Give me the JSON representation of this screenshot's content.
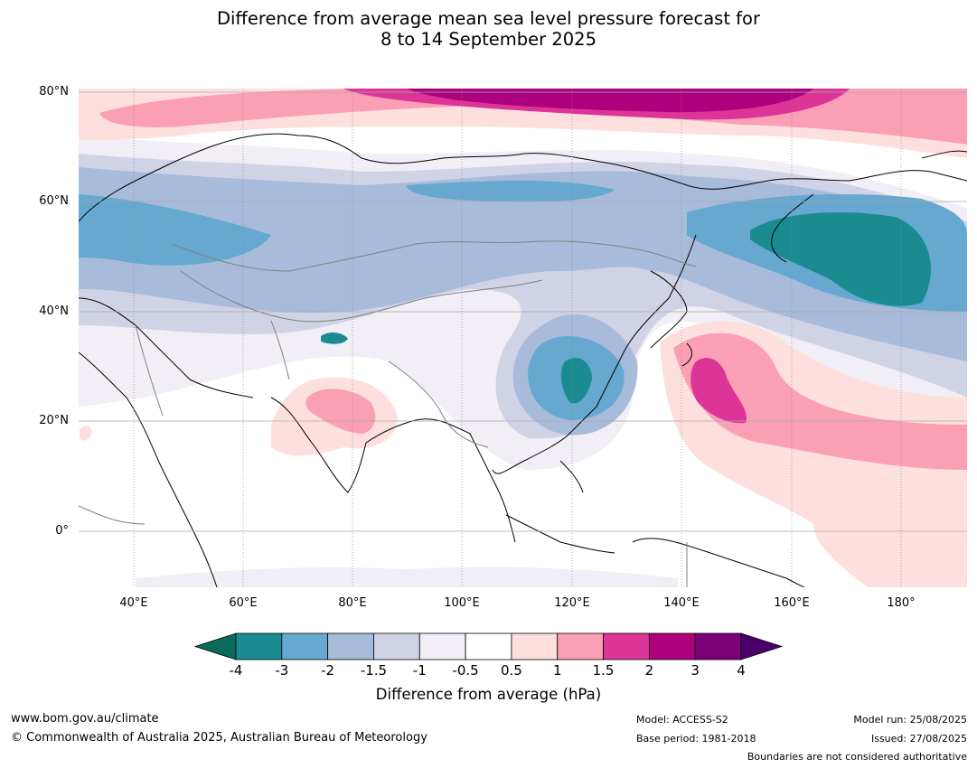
{
  "title_line1": "Difference from average mean sea level pressure forecast for",
  "title_line2": "8 to 14 September 2025",
  "map": {
    "lat_labels": [
      "80°N",
      "60°N",
      "40°N",
      "20°N",
      "0°"
    ],
    "lon_labels": [
      "40°E",
      "60°E",
      "80°E",
      "100°E",
      "120°E",
      "140°E",
      "160°E",
      "180°"
    ],
    "lon_range_deg": [
      30,
      190
    ],
    "lat_range_deg": [
      -10,
      80
    ],
    "anomaly_colors": {
      "below_-4": "#0b6b5a",
      "-4_to_-3": "#1a8c91",
      "-3_to_-2": "#66a8cf",
      "-2_to_-1.5": "#a8bbda",
      "-1.5_to_-1": "#d0d2e6",
      "-1_to_-0.5": "#f2eef5",
      "-0.5_to_0.5": "#ffffff",
      "0.5_to_1": "#fde0dd",
      "1_to_1.5": "#fa9fb5",
      "1.5_to_2": "#dd3497",
      "2_to_3": "#ae017e",
      "3_to_4": "#7a0177",
      "above_4": "#49006a"
    }
  },
  "colorbar": {
    "ticks": [
      "-4",
      "-3",
      "-2",
      "-1.5",
      "-1",
      "-0.5",
      "0.5",
      "1",
      "1.5",
      "2",
      "3",
      "4"
    ],
    "colors": [
      "#1a8c91",
      "#66a8cf",
      "#a8bbda",
      "#d0d2e6",
      "#f2eef5",
      "#ffffff",
      "#fde0dd",
      "#fa9fb5",
      "#dd3497",
      "#ae017e",
      "#7a0177"
    ],
    "low_extend_color": "#0b6b5a",
    "high_extend_color": "#49006a",
    "label": "Difference from average (hPa)"
  },
  "footer": {
    "website": "www.bom.gov.au/climate",
    "copyright": "© Commonwealth of Australia 2025, Australian Bureau of Meteorology",
    "model": "Model: ACCESS-S2",
    "base_period": "Base period: 1981-2018",
    "model_run": "Model run: 25/08/2025",
    "issued": "Issued: 27/08/2025",
    "disclaimer": "Boundaries are not considered authoritative"
  }
}
